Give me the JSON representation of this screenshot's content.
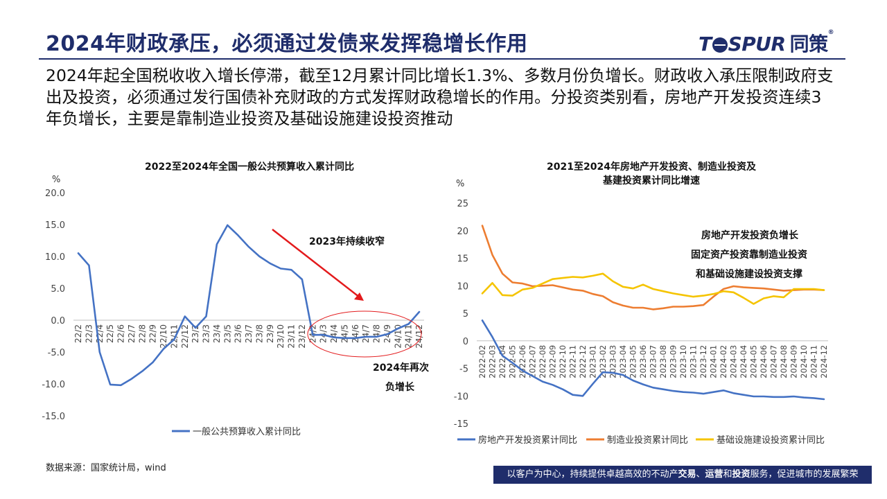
{
  "header": {
    "title": "2024年财政承压，必须通过发债来发挥稳增长作用",
    "logo_text": "T",
    "logo_text2": "SPUR",
    "logo_cn": "同策",
    "logo_reg": "®"
  },
  "lead_text": "2024年起全国税收收入增长停滞，截至12月累计同比增长1.3%、多数月份负增长。财政收入承压限制政府支出及投资，必须通过发行国债补充财政的方式发挥财政稳增长的作用。分投资类别看，房地产开发投资连续3年负增长，主要是靠制造业投资及基础设施建设投资推动",
  "source": "数据来源：国家统计局，wind",
  "footer": {
    "part1": "以客户为中心，持续提供卓越高效的不动产",
    "b1": "交易",
    "sep1": "、",
    "b2": "运营",
    "mid": "和",
    "b3": "投资",
    "part2": "服务，促进城市的发展繁荣"
  },
  "colors": {
    "navy": "#1f2d6b",
    "blue": "#4472c4",
    "orange": "#ed7d31",
    "yellow": "#f5c400",
    "red": "#e31a1c"
  },
  "chart_data": [
    {
      "type": "line",
      "title": "2022至2024年全国一般公共预算收入累计同比",
      "ylabel": "%",
      "ylim": [
        -15,
        20
      ],
      "yticks": [
        -15.0,
        -10.0,
        -5.0,
        0.0,
        5.0,
        10.0,
        15.0,
        20.0
      ],
      "grid": false,
      "legend_position": "bottom",
      "x_tick_labels": [
        "22/2",
        "22/3",
        "22/4",
        "22/5",
        "22/6",
        "22/7",
        "22/8",
        "22/9",
        "22/10",
        "22/11",
        "22/12",
        "23/2",
        "23/3",
        "23/4",
        "23/5",
        "23/6",
        "23/7",
        "23/8",
        "23/9",
        "23/10",
        "23/11",
        "23/12",
        "24/2",
        "24/3",
        "24/4",
        "24/5",
        "24/6",
        "24/7",
        "24/8",
        "24/9",
        "24/10",
        "24/11",
        "24/12"
      ],
      "series": [
        {
          "name": "一般公共预算收入累计同比",
          "color": "#4472c4",
          "values": [
            10.5,
            8.6,
            -5.0,
            -10.1,
            -10.2,
            -9.2,
            -8.0,
            -6.6,
            -4.5,
            -3.0,
            0.6,
            -1.2,
            0.6,
            11.9,
            14.9,
            13.3,
            11.5,
            10.0,
            8.9,
            8.1,
            7.9,
            6.4,
            -2.3,
            -2.3,
            -2.7,
            -2.8,
            -2.8,
            -2.6,
            -2.6,
            -2.2,
            -1.3,
            -0.6,
            1.3
          ]
        }
      ],
      "annotations": [
        "2023年持续收窄",
        "2024年再次",
        "负增长"
      ]
    },
    {
      "type": "line",
      "title": "2021至2024年房地产开发投资、制造业投资及",
      "subtitle": "基建投资累计同比增速",
      "ylabel": "%",
      "ylim": [
        -15,
        25
      ],
      "yticks": [
        -15,
        -10,
        -5,
        0,
        5,
        10,
        15,
        20,
        25
      ],
      "grid": false,
      "legend_position": "bottom",
      "x": [
        "2022-02",
        "2022-03",
        "2022-04",
        "2022-05",
        "2022-06",
        "2022-07",
        "2022-08",
        "2022-09",
        "2022-10",
        "2022-11",
        "2022-12",
        "2023-01",
        "2023-02",
        "2023-03",
        "2023-04",
        "2023-05",
        "2023-06",
        "2023-07",
        "2023-08",
        "2023-09",
        "2023-10",
        "2023-11",
        "2023-12",
        "2024-01",
        "2024-02",
        "2024-03",
        "2024-04",
        "2024-05",
        "2024-06",
        "2024-07",
        "2024-08",
        "2024-09",
        "2024-10",
        "2024-11",
        "2024-12"
      ],
      "x_tick_labels": [
        "2022-02",
        "2022-03",
        "2022-04",
        "2022-05",
        "2022-06",
        "2022-07",
        "2022-08",
        "2022-09",
        "2022-10",
        "2022-11",
        "2022-12",
        "2023-01",
        "2023-02",
        "2023-03",
        "2023-04",
        "2023-05",
        "2023-06",
        "2023-07",
        "2023-08",
        "2023-09",
        "2023-10",
        "2023-11",
        "2023-12",
        "2024-01",
        "2024-02",
        "2024-03",
        "2024-04",
        "2024-05",
        "2024-06",
        "2024-07",
        "2024-08",
        "2024-09",
        "2024-10",
        "2024-11",
        "2024-12"
      ],
      "series": [
        {
          "name": "房地产开发投资累计同比",
          "color": "#4472c4",
          "values": [
            3.7,
            0.7,
            -2.7,
            -4.0,
            -5.4,
            -6.4,
            -7.4,
            -8.0,
            -8.8,
            -9.8,
            -10.0,
            -7.8,
            -5.7,
            -5.8,
            -6.2,
            -7.2,
            -7.9,
            -8.5,
            -8.8,
            -9.1,
            -9.3,
            -9.4,
            -9.6,
            -9.3,
            -9.0,
            -9.5,
            -9.8,
            -10.1,
            -10.1,
            -10.2,
            -10.2,
            -10.1,
            -10.3,
            -10.4,
            -10.6
          ]
        },
        {
          "name": "制造业投资累计同比",
          "color": "#ed7d31",
          "values": [
            20.9,
            15.6,
            12.2,
            10.6,
            10.4,
            9.9,
            10.0,
            10.1,
            9.7,
            9.3,
            9.1,
            8.5,
            8.1,
            7.0,
            6.4,
            6.0,
            6.0,
            5.7,
            5.9,
            6.2,
            6.2,
            6.3,
            6.5,
            8.0,
            9.4,
            9.9,
            9.7,
            9.6,
            9.5,
            9.3,
            9.1,
            9.2,
            9.3,
            9.3,
            9.2
          ]
        },
        {
          "name": "基础设施建设投资累计同比",
          "color": "#f5c400",
          "values": [
            8.6,
            10.5,
            8.3,
            8.2,
            9.3,
            9.6,
            10.4,
            11.2,
            11.4,
            11.6,
            11.5,
            11.8,
            12.2,
            10.8,
            9.8,
            9.5,
            10.2,
            9.4,
            9.0,
            8.6,
            8.3,
            8.0,
            8.2,
            8.5,
            9.0,
            8.8,
            7.8,
            6.7,
            7.7,
            8.1,
            7.9,
            9.4,
            9.4,
            9.4,
            9.2
          ]
        }
      ],
      "annotations": [
        "房地产开发投资负增长",
        "固定资产投资靠制造业投资",
        "和基础设施建设投资支撑"
      ]
    }
  ]
}
